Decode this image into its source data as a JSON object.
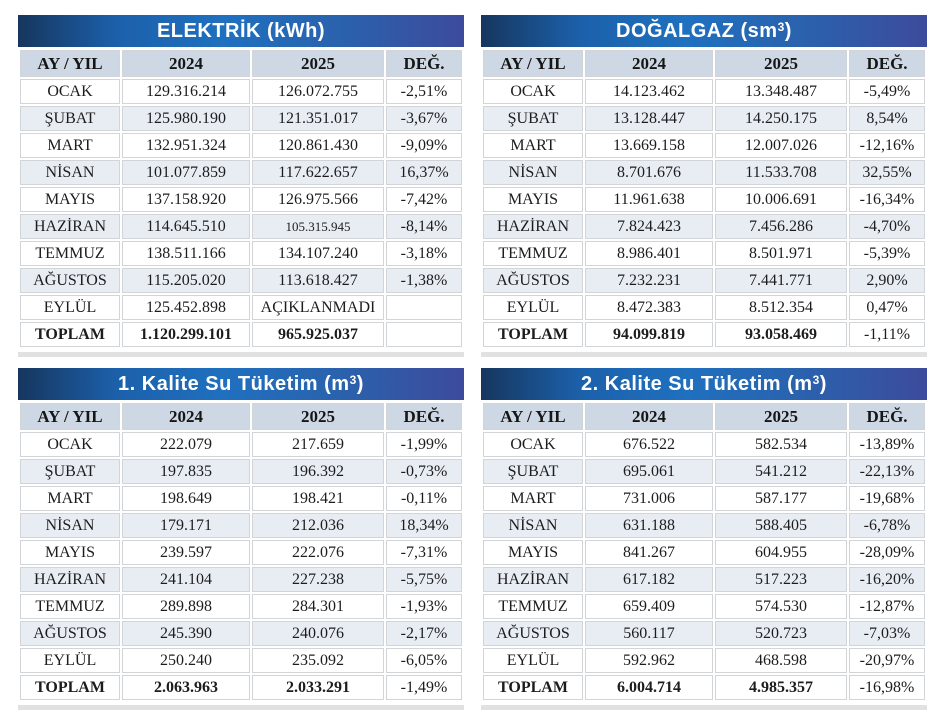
{
  "columns": {
    "month": "AY / YIL",
    "y2024": "2024",
    "y2025": "2025",
    "change": "DEĞ."
  },
  "colors": {
    "title_gradient_left": "#16365e",
    "title_gradient_mid": "#1f70bf",
    "title_gradient_right": "#3d4b9c",
    "header_bg": "#cdd8e4",
    "stripe_bg": "#e8edf4",
    "cell_border": "#d2d5d8"
  },
  "tables": [
    {
      "id": "elektrik",
      "title": {
        "main": "ELEKTRİK (kWh)",
        "sup": "",
        "close": ""
      },
      "rows": [
        {
          "month": "OCAK",
          "y2024": "129.316.214",
          "y2025": "126.072.755",
          "change": "-2,51%"
        },
        {
          "month": "ŞUBAT",
          "y2024": "125.980.190",
          "y2025": "121.351.017",
          "change": "-3,67%"
        },
        {
          "month": "MART",
          "y2024": "132.951.324",
          "y2025": "120.861.430",
          "change": "-9,09%"
        },
        {
          "month": "NİSAN",
          "y2024": "101.077.859",
          "y2025": "117.622.657",
          "change": "16,37%"
        },
        {
          "month": "MAYIS",
          "y2024": "137.158.920",
          "y2025": "126.975.566",
          "change": "-7,42%"
        },
        {
          "month": "HAZİRAN",
          "y2024": "114.645.510",
          "y2025": "105.315.945",
          "change": "-8,14%",
          "small_2025": true
        },
        {
          "month": "TEMMUZ",
          "y2024": "138.511.166",
          "y2025": "134.107.240",
          "change": "-3,18%"
        },
        {
          "month": "AĞUSTOS",
          "y2024": "115.205.020",
          "y2025": "113.618.427",
          "change": "-1,38%"
        },
        {
          "month": "EYLÜL",
          "y2024": "125.452.898",
          "y2025": "AÇIKLANMADI",
          "change": ""
        },
        {
          "month": "TOPLAM",
          "y2024": "1.120.299.101",
          "y2025": "965.925.037",
          "change": "",
          "total": true
        }
      ]
    },
    {
      "id": "dogalgaz",
      "title": {
        "main": "DOĞALGAZ (sm",
        "sup": "3",
        "close": ")"
      },
      "rows": [
        {
          "month": "OCAK",
          "y2024": "14.123.462",
          "y2025": "13.348.487",
          "change": "-5,49%"
        },
        {
          "month": "ŞUBAT",
          "y2024": "13.128.447",
          "y2025": "14.250.175",
          "change": "8,54%"
        },
        {
          "month": "MART",
          "y2024": "13.669.158",
          "y2025": "12.007.026",
          "change": "-12,16%"
        },
        {
          "month": "NİSAN",
          "y2024": "8.701.676",
          "y2025": "11.533.708",
          "change": "32,55%"
        },
        {
          "month": "MAYIS",
          "y2024": "11.961.638",
          "y2025": "10.006.691",
          "change": "-16,34%"
        },
        {
          "month": "HAZİRAN",
          "y2024": "7.824.423",
          "y2025": "7.456.286",
          "change": "-4,70%"
        },
        {
          "month": "TEMMUZ",
          "y2024": "8.986.401",
          "y2025": "8.501.971",
          "change": "-5,39%"
        },
        {
          "month": "AĞUSTOS",
          "y2024": "7.232.231",
          "y2025": "7.441.771",
          "change": "2,90%"
        },
        {
          "month": "EYLÜL",
          "y2024": "8.472.383",
          "y2025": "8.512.354",
          "change": "0,47%"
        },
        {
          "month": "TOPLAM",
          "y2024": "94.099.819",
          "y2025": "93.058.469",
          "change": "-1,11%",
          "total": true
        }
      ]
    },
    {
      "id": "kalite1-su",
      "title": {
        "main": "1. Kalite Su Tüketim (m",
        "sup": "3",
        "close": ")"
      },
      "rows": [
        {
          "month": "OCAK",
          "y2024": "222.079",
          "y2025": "217.659",
          "change": "-1,99%"
        },
        {
          "month": "ŞUBAT",
          "y2024": "197.835",
          "y2025": "196.392",
          "change": "-0,73%"
        },
        {
          "month": "MART",
          "y2024": "198.649",
          "y2025": "198.421",
          "change": "-0,11%"
        },
        {
          "month": "NİSAN",
          "y2024": "179.171",
          "y2025": "212.036",
          "change": "18,34%"
        },
        {
          "month": "MAYIS",
          "y2024": "239.597",
          "y2025": "222.076",
          "change": "-7,31%"
        },
        {
          "month": "HAZİRAN",
          "y2024": "241.104",
          "y2025": "227.238",
          "change": "-5,75%"
        },
        {
          "month": "TEMMUZ",
          "y2024": "289.898",
          "y2025": "284.301",
          "change": "-1,93%"
        },
        {
          "month": "AĞUSTOS",
          "y2024": "245.390",
          "y2025": "240.076",
          "change": "-2,17%"
        },
        {
          "month": "EYLÜL",
          "y2024": "250.240",
          "y2025": "235.092",
          "change": "-6,05%"
        },
        {
          "month": "TOPLAM",
          "y2024": "2.063.963",
          "y2025": "2.033.291",
          "change": "-1,49%",
          "total": true
        }
      ]
    },
    {
      "id": "kalite2-su",
      "title": {
        "main": "2. Kalite Su Tüketim (m",
        "sup": "3",
        "close": ")"
      },
      "rows": [
        {
          "month": "OCAK",
          "y2024": "676.522",
          "y2025": "582.534",
          "change": "-13,89%"
        },
        {
          "month": "ŞUBAT",
          "y2024": "695.061",
          "y2025": "541.212",
          "change": "-22,13%"
        },
        {
          "month": "MART",
          "y2024": "731.006",
          "y2025": "587.177",
          "change": "-19,68%"
        },
        {
          "month": "NİSAN",
          "y2024": "631.188",
          "y2025": "588.405",
          "change": "-6,78%"
        },
        {
          "month": "MAYIS",
          "y2024": "841.267",
          "y2025": "604.955",
          "change": "-28,09%"
        },
        {
          "month": "HAZİRAN",
          "y2024": "617.182",
          "y2025": "517.223",
          "change": "-16,20%"
        },
        {
          "month": "TEMMUZ",
          "y2024": "659.409",
          "y2025": "574.530",
          "change": "-12,87%"
        },
        {
          "month": "AĞUSTOS",
          "y2024": "560.117",
          "y2025": "520.723",
          "change": "-7,03%"
        },
        {
          "month": "EYLÜL",
          "y2024": "592.962",
          "y2025": "468.598",
          "change": "-20,97%"
        },
        {
          "month": "TOPLAM",
          "y2024": "6.004.714",
          "y2025": "4.985.357",
          "change": "-16,98%",
          "total": true
        }
      ]
    }
  ]
}
